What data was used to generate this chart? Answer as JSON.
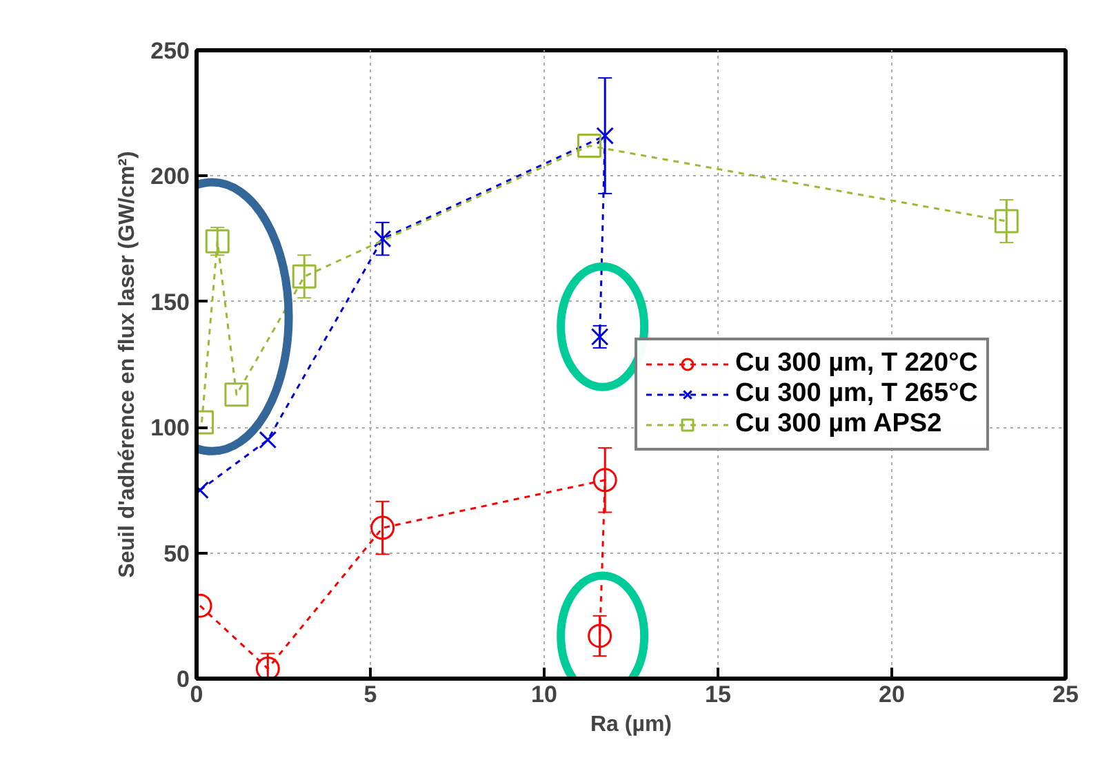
{
  "chart_data": {
    "type": "line",
    "xlabel": "Ra (µm)",
    "ylabel": "Seuil d'adhérence en flux laser (GW/cm²)",
    "xlim": [
      0,
      25
    ],
    "xticks": [
      0,
      5,
      10,
      15,
      20,
      25
    ],
    "ylim": [
      0,
      250
    ],
    "yticks": [
      0,
      50,
      100,
      150,
      200,
      250
    ],
    "grid": true,
    "legend": "right",
    "line_style": "dashed",
    "series": [
      {
        "name": "Cu 300 µm, T 220°C",
        "color": "#ff0000",
        "marker": "circle",
        "x": [
          0.1,
          2.05,
          5.35,
          11.75,
          11.6
        ],
        "values": [
          29,
          4,
          60,
          79,
          17
        ],
        "errors": [
          null,
          6,
          10.5,
          12.8,
          8
        ]
      },
      {
        "name": "Cu 300 µm, T 265°C",
        "color": "#0000dd",
        "marker": "cross",
        "x": [
          0.1,
          2.05,
          5.35,
          11.75,
          11.6
        ],
        "values": [
          75,
          95,
          175,
          216,
          136
        ],
        "errors": [
          null,
          null,
          6.5,
          23,
          4.4
        ]
      },
      {
        "name": "Cu 300 µm APS2",
        "color": "#99bb33",
        "marker": "square",
        "x": [
          0.15,
          0.6,
          1.15,
          3.1,
          11.3,
          23.3
        ],
        "values": [
          102,
          174,
          113,
          160,
          212,
          182
        ],
        "errors": [
          null,
          5.5,
          null,
          8.5,
          null,
          8.5
        ]
      }
    ]
  }
}
